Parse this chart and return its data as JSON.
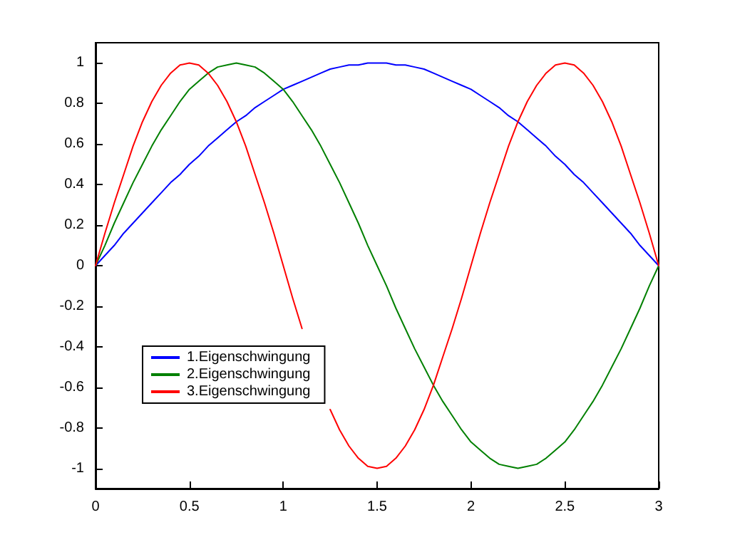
{
  "chart_data": {
    "type": "line",
    "x": [
      0,
      0.05,
      0.1,
      0.15,
      0.2,
      0.25,
      0.3,
      0.35,
      0.4,
      0.45,
      0.5,
      0.55,
      0.6,
      0.65,
      0.7,
      0.75,
      0.8,
      0.85,
      0.9,
      0.95,
      1,
      1.05,
      1.1,
      1.15,
      1.2,
      1.25,
      1.3,
      1.35,
      1.4,
      1.45,
      1.5,
      1.55,
      1.6,
      1.65,
      1.7,
      1.75,
      1.8,
      1.85,
      1.9,
      1.95,
      2,
      2.05,
      2.1,
      2.15,
      2.2,
      2.25,
      2.3,
      2.35,
      2.4,
      2.45,
      2.5,
      2.55,
      2.6,
      2.65,
      2.7,
      2.75,
      2.8,
      2.85,
      2.9,
      2.95,
      3
    ],
    "series": [
      {
        "name": "1.Eigenschwingung",
        "color": "#0000ff",
        "values": [
          0,
          0.05,
          0.1,
          0.16,
          0.21,
          0.26,
          0.31,
          0.36,
          0.41,
          0.45,
          0.5,
          0.54,
          0.59,
          0.63,
          0.67,
          0.71,
          0.74,
          0.78,
          0.81,
          0.84,
          0.87,
          0.89,
          0.91,
          0.93,
          0.95,
          0.97,
          0.98,
          0.99,
          0.99,
          1.0,
          1.0,
          1.0,
          0.99,
          0.99,
          0.98,
          0.97,
          0.95,
          0.93,
          0.91,
          0.89,
          0.87,
          0.84,
          0.81,
          0.78,
          0.74,
          0.71,
          0.67,
          0.63,
          0.59,
          0.54,
          0.5,
          0.45,
          0.41,
          0.36,
          0.31,
          0.26,
          0.21,
          0.16,
          0.1,
          0.05,
          0
        ]
      },
      {
        "name": "2.Eigenschwingung",
        "color": "#008000",
        "values": [
          0,
          0.1,
          0.21,
          0.31,
          0.41,
          0.5,
          0.59,
          0.67,
          0.74,
          0.81,
          0.87,
          0.91,
          0.95,
          0.98,
          0.99,
          1.0,
          0.99,
          0.98,
          0.95,
          0.91,
          0.87,
          0.81,
          0.74,
          0.67,
          0.59,
          0.5,
          0.41,
          0.31,
          0.21,
          0.1,
          0,
          -0.1,
          -0.21,
          -0.31,
          -0.41,
          -0.5,
          -0.59,
          -0.67,
          -0.74,
          -0.81,
          -0.87,
          -0.91,
          -0.95,
          -0.98,
          -0.99,
          -1.0,
          -0.99,
          -0.98,
          -0.95,
          -0.91,
          -0.87,
          -0.81,
          -0.74,
          -0.67,
          -0.59,
          -0.5,
          -0.41,
          -0.31,
          -0.21,
          -0.1,
          0
        ]
      },
      {
        "name": "3.Eigenschwingung",
        "color": "#ff0000",
        "values": [
          0,
          0.16,
          0.31,
          0.45,
          0.59,
          0.71,
          0.81,
          0.89,
          0.95,
          0.99,
          1.0,
          0.99,
          0.95,
          0.89,
          0.81,
          0.71,
          0.59,
          0.45,
          0.31,
          0.16,
          0,
          -0.16,
          -0.31,
          null,
          null,
          -0.71,
          -0.81,
          -0.89,
          -0.95,
          -0.99,
          -1.0,
          -0.99,
          -0.95,
          -0.89,
          -0.81,
          -0.71,
          -0.59,
          -0.45,
          -0.31,
          -0.16,
          0,
          0.16,
          0.31,
          0.45,
          0.59,
          0.71,
          0.81,
          0.89,
          0.95,
          0.99,
          1.0,
          0.99,
          0.95,
          0.89,
          0.81,
          0.71,
          0.59,
          0.45,
          0.31,
          0.16,
          0
        ]
      }
    ],
    "xlim": [
      0,
      3
    ],
    "xticks": [
      0,
      0.5,
      1,
      1.5,
      2,
      2.5,
      3
    ],
    "ylim": [
      -1.1,
      1.1
    ],
    "yticks": [
      -1,
      -0.8,
      -0.6,
      -0.4,
      -0.2,
      0,
      0.2,
      0.4,
      0.6,
      0.8,
      1
    ],
    "legend": "bottom left",
    "marker": "none",
    "line_style": "solid"
  }
}
